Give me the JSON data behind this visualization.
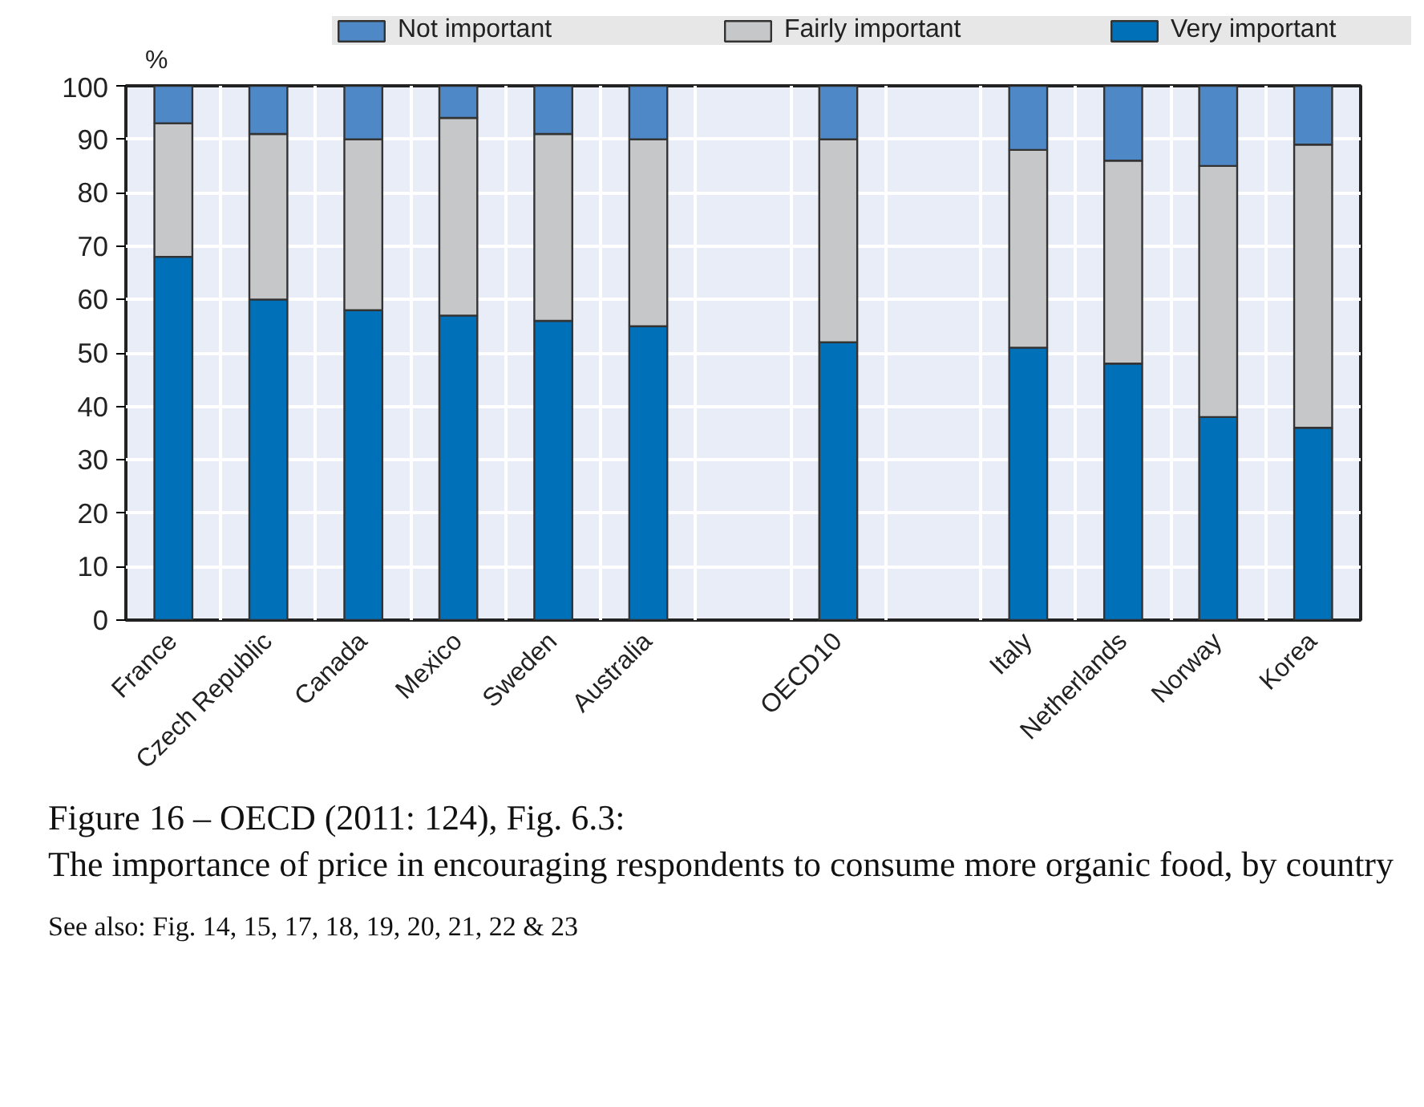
{
  "chart_data": {
    "type": "bar",
    "stacked": true,
    "title": "Figure 16 – OECD (2011: 124), Fig. 6.3:",
    "subtitle": "The importance of price in encouraging respondents to consume more organic food, by country",
    "annotations": [
      "See also: Fig. 14, 15, 17, 18, 19, 20, 21, 22 & 23"
    ],
    "ylabel": "%",
    "categories": [
      "France",
      "Czech Republic",
      "Canada",
      "Mexico",
      "Sweden",
      "Australia",
      null,
      "OECD10",
      null,
      "Italy",
      "Netherlands",
      "Norway",
      "Korea"
    ],
    "series": [
      {
        "name": "Very important",
        "color": "#0070b8",
        "values": [
          68,
          60,
          58,
          57,
          56,
          55,
          null,
          52,
          null,
          51,
          48,
          38,
          36
        ]
      },
      {
        "name": "Fairly important",
        "color": "#c6c7c9",
        "values": [
          25,
          31,
          32,
          37,
          35,
          35,
          null,
          38,
          null,
          37,
          38,
          47,
          53
        ]
      },
      {
        "name": "Not important",
        "color": "#4f88c6",
        "values": [
          7,
          9,
          10,
          6,
          9,
          10,
          null,
          10,
          null,
          12,
          14,
          15,
          11
        ]
      }
    ],
    "ylim": [
      0,
      100
    ],
    "yticks": [
      0,
      10,
      20,
      30,
      40,
      50,
      60,
      70,
      80,
      90,
      100
    ],
    "grid": true,
    "legend": "top"
  }
}
